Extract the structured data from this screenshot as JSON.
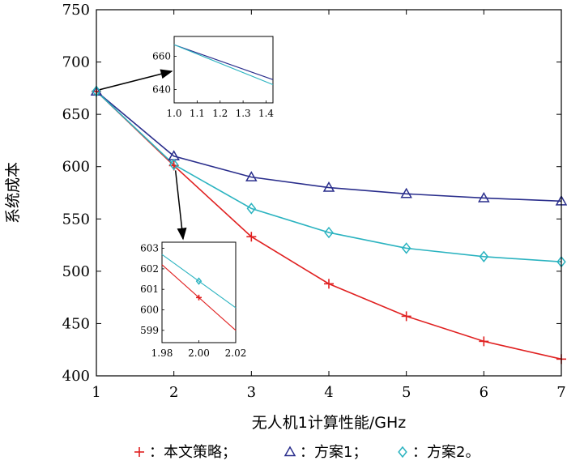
{
  "chart_data": {
    "type": "line",
    "xlabel": "无人机1计算性能/GHz",
    "ylabel": "系统成本",
    "xlim": [
      1,
      7
    ],
    "ylim": [
      400,
      750
    ],
    "xticks": [
      "1",
      "2",
      "3",
      "4",
      "5",
      "6",
      "7"
    ],
    "yticks": [
      "400",
      "450",
      "500",
      "550",
      "600",
      "650",
      "700",
      "750"
    ],
    "x": [
      1,
      2,
      3,
      4,
      5,
      6,
      7
    ],
    "series": [
      {
        "name": "本文策略",
        "legend_label": "：本文策略；",
        "marker": "plus",
        "color": "#e02020",
        "values": [
          672,
          601,
          533,
          488,
          457,
          433,
          416
        ]
      },
      {
        "name": "方案1",
        "legend_label": "：方案1；",
        "marker": "triangle",
        "color": "#2a2e8c",
        "values": [
          672,
          610,
          590,
          580,
          574,
          570,
          567
        ]
      },
      {
        "name": "方案2",
        "legend_label": "：方案2。",
        "marker": "diamond",
        "color": "#2bb3c0",
        "values": [
          672,
          602,
          560,
          537,
          522,
          514,
          509
        ]
      }
    ],
    "insets": [
      {
        "name": "inset-top",
        "xlim": [
          1.0,
          1.43
        ],
        "ylim": [
          632,
          672
        ],
        "xticks": [
          "1.0",
          "1.1",
          "1.2",
          "1.3",
          "1.4"
        ],
        "yticks": [
          "640",
          "660"
        ],
        "lines": [
          {
            "series": "方案1",
            "color": "#2a2e8c",
            "x": [
              1.0,
              1.43
            ],
            "y": [
              667,
              646
            ]
          },
          {
            "series": "方案2",
            "color": "#2bb3c0",
            "x": [
              1.0,
              1.43
            ],
            "y": [
              667,
              643
            ]
          }
        ]
      },
      {
        "name": "inset-bottom",
        "xlim": [
          1.98,
          2.02
        ],
        "ylim": [
          598.4,
          603.3
        ],
        "xticks": [
          "1.98",
          "2.00",
          "2.02"
        ],
        "yticks": [
          "599",
          "600",
          "601",
          "602",
          "603"
        ],
        "lines": [
          {
            "series": "本文策略",
            "color": "#e02020",
            "x": [
              1.98,
              2.02
            ],
            "y": [
              602.2,
              599.0
            ]
          },
          {
            "series": "方案2",
            "color": "#2bb3c0",
            "x": [
              1.98,
              2.02
            ],
            "y": [
              602.7,
              600.1
            ]
          }
        ],
        "markers": [
          {
            "series": "本文策略",
            "marker": "plus",
            "color": "#e02020",
            "x": 2.0,
            "y": 600.6
          },
          {
            "series": "方案2",
            "marker": "diamond",
            "color": "#2bb3c0",
            "x": 2.0,
            "y": 601.4
          }
        ]
      }
    ]
  }
}
